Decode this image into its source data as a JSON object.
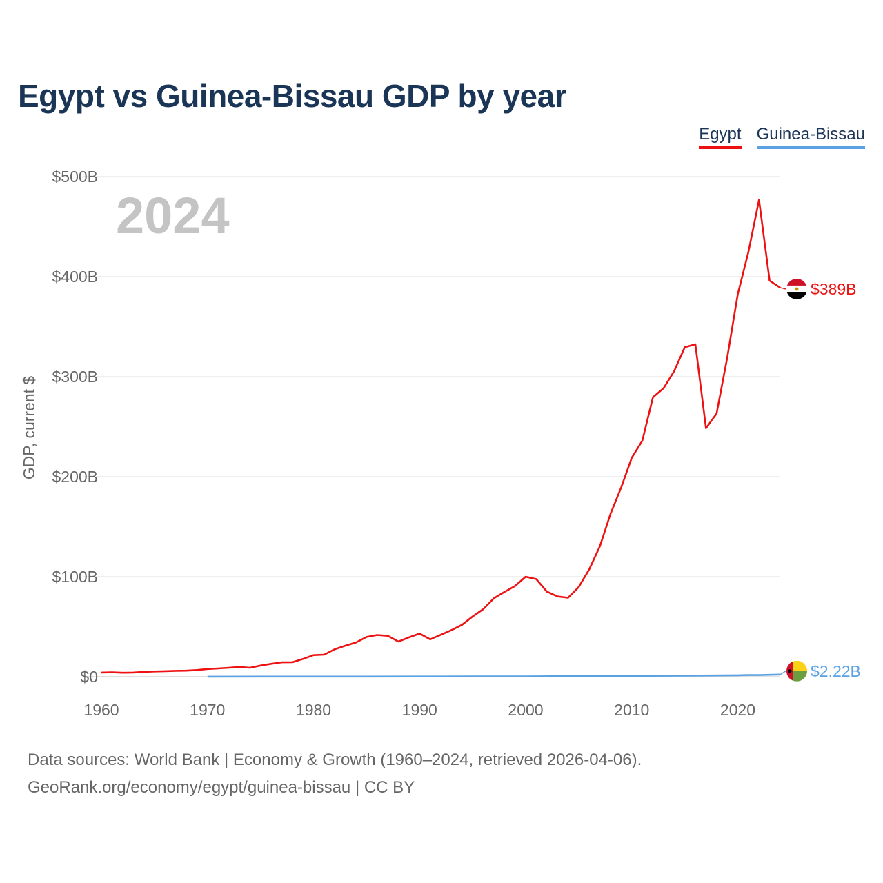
{
  "title": "Egypt vs Guinea-Bissau GDP by year",
  "year_watermark": "2024",
  "legend": [
    {
      "name": "Egypt",
      "color": "#ee1111"
    },
    {
      "name": "Guinea-Bissau",
      "color": "#5aa2e3"
    }
  ],
  "footer": {
    "line1": "Data sources: World Bank | Economy & Growth (1960–2024, retrieved 2026-04-06).",
    "line2": "GeoRank.org/economy/egypt/guinea-bissau | CC BY"
  },
  "chart_data": {
    "type": "line",
    "title": "Egypt vs Guinea-Bissau GDP by year",
    "xlabel": "",
    "ylabel": "GDP, current $",
    "xlim": [
      1960,
      2024
    ],
    "ylim": [
      0,
      500
    ],
    "y_unit": "billions USD",
    "x_ticks": [
      1960,
      1970,
      1980,
      1990,
      2000,
      2010,
      2020
    ],
    "y_ticks": [
      0,
      100,
      200,
      300,
      400,
      500
    ],
    "y_tick_labels": [
      "$0",
      "$100B",
      "$200B",
      "$300B",
      "$400B",
      "$500B"
    ],
    "grid": true,
    "legend_position": "top-right",
    "series": [
      {
        "name": "Egypt",
        "color": "#ee1111",
        "end_label": "$389B",
        "x": [
          1960,
          1961,
          1962,
          1963,
          1964,
          1965,
          1966,
          1967,
          1968,
          1969,
          1970,
          1971,
          1972,
          1973,
          1974,
          1975,
          1976,
          1977,
          1978,
          1979,
          1980,
          1981,
          1982,
          1983,
          1984,
          1985,
          1986,
          1987,
          1988,
          1989,
          1990,
          1991,
          1992,
          1993,
          1994,
          1995,
          1996,
          1997,
          1998,
          1999,
          2000,
          2001,
          2002,
          2003,
          2004,
          2005,
          2006,
          2007,
          2008,
          2009,
          2010,
          2011,
          2012,
          2013,
          2014,
          2015,
          2016,
          2017,
          2018,
          2019,
          2020,
          2021,
          2022,
          2023,
          2024
        ],
        "values": [
          4.2,
          4.4,
          4.0,
          4.2,
          4.9,
          5.3,
          5.6,
          5.9,
          6.1,
          6.7,
          7.7,
          8.3,
          9.0,
          9.8,
          9.0,
          11.2,
          12.9,
          14.4,
          14.5,
          17.7,
          21.6,
          22.1,
          27.5,
          31.0,
          34.2,
          39.7,
          41.7,
          40.9,
          35.2,
          39.4,
          43.1,
          37.4,
          41.9,
          46.6,
          51.9,
          60.2,
          67.6,
          78.4,
          84.8,
          90.7,
          100.0,
          97.6,
          85.1,
          80.3,
          79.0,
          89.7,
          107.5,
          130.5,
          162.8,
          189.1,
          218.9,
          236.0,
          279.4,
          288.4,
          305.6,
          329.4,
          332.4,
          248.4,
          263.2,
          318.7,
          382.5,
          424.7,
          476.7,
          396.0,
          389.0
        ]
      },
      {
        "name": "Guinea-Bissau",
        "color": "#5aa2e3",
        "end_label": "$2.22B",
        "x": [
          1970,
          1975,
          1980,
          1985,
          1990,
          1995,
          2000,
          2005,
          2010,
          2015,
          2020,
          2021,
          2022,
          2023,
          2024
        ],
        "values": [
          0.08,
          0.13,
          0.11,
          0.16,
          0.24,
          0.26,
          0.37,
          0.59,
          0.85,
          1.05,
          1.43,
          1.64,
          1.63,
          1.96,
          2.22
        ]
      }
    ]
  }
}
